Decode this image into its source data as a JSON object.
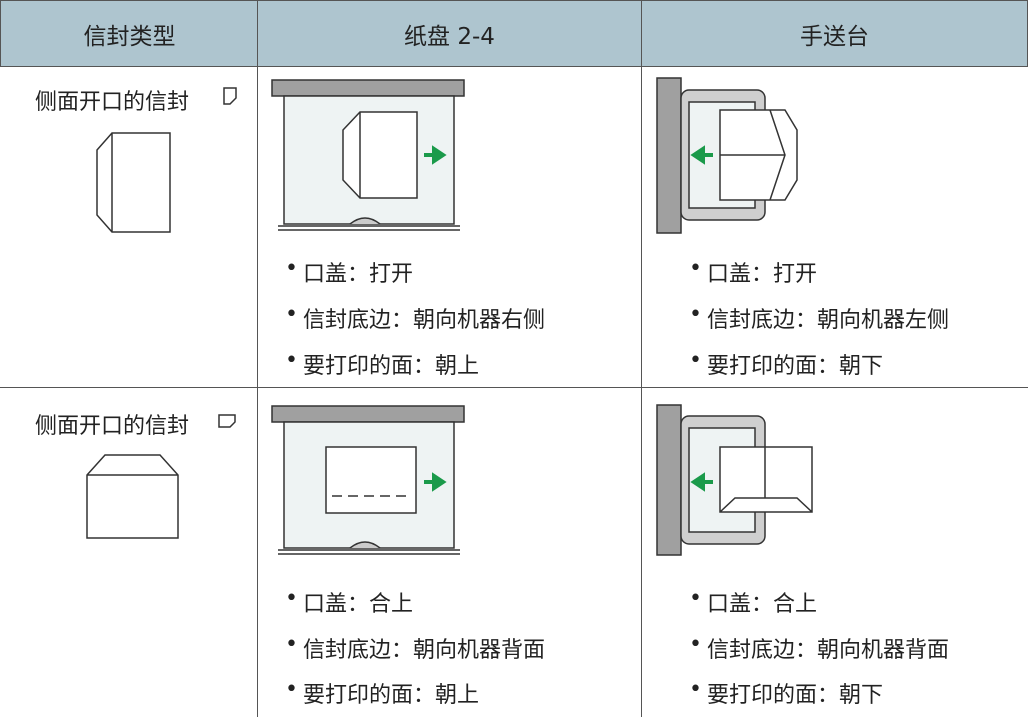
{
  "table": {
    "headers": [
      "信封类型",
      "纸盘 2-4",
      "手送台"
    ],
    "rows": [
      {
        "type": "侧面开口的信封",
        "tray": [
          "口盖：打开",
          "信封底边：朝向机器右侧",
          "要打印的面：朝上"
        ],
        "bypass": [
          "口盖：打开",
          "信封底边：朝向机器左侧",
          "要打印的面：朝下"
        ]
      },
      {
        "type": "侧面开口的信封",
        "tray": [
          "口盖：合上",
          "信封底边：朝向机器背面",
          "要打印的面：朝上"
        ],
        "bypass": [
          "口盖：合上",
          "信封底边：朝向机器背面",
          "要打印的面：朝下"
        ]
      }
    ]
  }
}
